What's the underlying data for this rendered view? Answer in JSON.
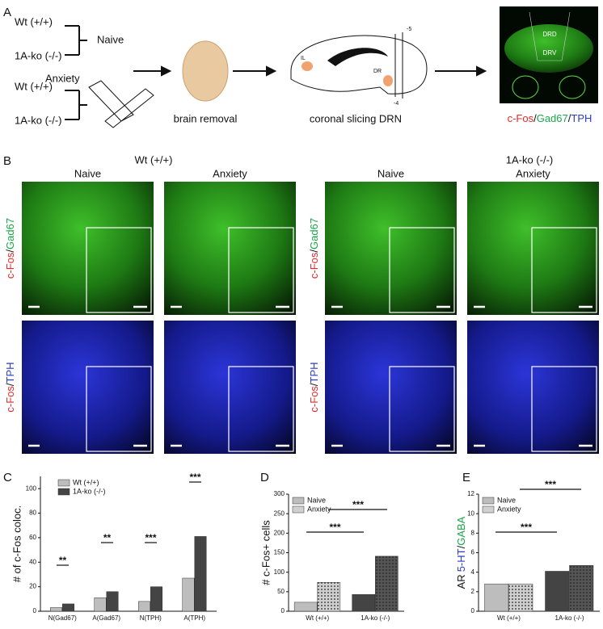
{
  "panel_a": {
    "letter": "A",
    "groups": [
      {
        "genotype_1": "Wt (+/+)",
        "genotype_2": "1A-ko (-/-)",
        "condition": "Naive"
      },
      {
        "genotype_1": "Wt (+/+)",
        "genotype_2": "1A-ko (-/-)",
        "condition": "Anxiety"
      }
    ],
    "step_1": "brain removal",
    "step_2": "coronal slicing DRN",
    "slice_labels": [
      "IL",
      "DR",
      "-5",
      "-4"
    ],
    "region_labels": [
      "DRD",
      "DRV"
    ],
    "stain": [
      "c-Fos",
      "/",
      "Gad67",
      "/",
      "TPH"
    ],
    "stain_colors": [
      "#e8272a",
      "#111111",
      "#1aa64a",
      "#111111",
      "#2b3bc9"
    ]
  },
  "panel_b": {
    "letter": "B",
    "genotypes": [
      "Wt (+/+)",
      "1A-ko (-/-)"
    ],
    "conditions": [
      "Naive",
      "Anxiety",
      "Naive",
      "Anxiety"
    ],
    "rows": [
      [
        "c-Fos",
        "/",
        "Gad67"
      ],
      [
        "c-Fos",
        "/",
        "TPH"
      ]
    ],
    "row_colors": [
      [
        "#e8272a",
        "#111111",
        "#1aa64a"
      ],
      [
        "#e8272a",
        "#111111",
        "#2b3bc9"
      ]
    ]
  },
  "chart_data": [
    {
      "type": "bar",
      "panel": "C",
      "ylabel": "# of c-Fos coloc.",
      "categories": [
        "N(Gad67)",
        "A(Gad67)",
        "N(TPH)",
        "A(TPH)"
      ],
      "series": [
        {
          "name": "Wt (+/+)",
          "colors": [
            "#bdbdbd",
            "#bdbdbd",
            "#bdbdbd",
            "#bdbdbd"
          ],
          "values": [
            3,
            11,
            8,
            27
          ]
        },
        {
          "name": "1A-ko (-/-)",
          "colors": [
            "#444444",
            "#444444",
            "#444444",
            "#444444"
          ],
          "values": [
            6,
            16,
            20,
            61
          ]
        }
      ],
      "ylim": [
        0,
        110
      ],
      "yticks": [
        0,
        20,
        40,
        60,
        80,
        100
      ],
      "annotations": [
        "**",
        "**",
        "***",
        "***"
      ]
    },
    {
      "type": "bar",
      "panel": "D",
      "ylabel": "# c-Fos+ cells",
      "categories": [
        "Wt (+/+)",
        "1A-ko (-/-)"
      ],
      "series": [
        {
          "name": "Naive",
          "colors": [
            "#bdbdbd",
            "#444444"
          ],
          "values": [
            23,
            43
          ]
        },
        {
          "name": "Anxiety",
          "colors": [
            "#d0d0d0",
            "#555555"
          ],
          "pattern": "dots",
          "values": [
            74,
            141
          ]
        }
      ],
      "ylim": [
        0,
        300
      ],
      "yticks": [
        0,
        50,
        100,
        150,
        200,
        250,
        300
      ],
      "annotations": [
        "***",
        "***"
      ]
    },
    {
      "type": "bar",
      "panel": "E",
      "ylabel": [
        "AR",
        "5-HT",
        "/",
        "GABA"
      ],
      "ylabel_colors": [
        "#111111",
        "#2b3bc9",
        "#111111",
        "#1aa64a"
      ],
      "categories": [
        "Wt (+/+)",
        "1A-ko (-/-)"
      ],
      "series": [
        {
          "name": "Naive",
          "colors": [
            "#bdbdbd",
            "#444444"
          ],
          "values": [
            2.8,
            4.1
          ]
        },
        {
          "name": "Anxiety",
          "colors": [
            "#d0d0d0",
            "#555555"
          ],
          "pattern": "dots",
          "values": [
            2.8,
            4.7
          ]
        }
      ],
      "ylim": [
        0,
        12
      ],
      "yticks": [
        0,
        2,
        4,
        6,
        8,
        10,
        12
      ],
      "annotations": [
        "***",
        "***"
      ]
    }
  ]
}
